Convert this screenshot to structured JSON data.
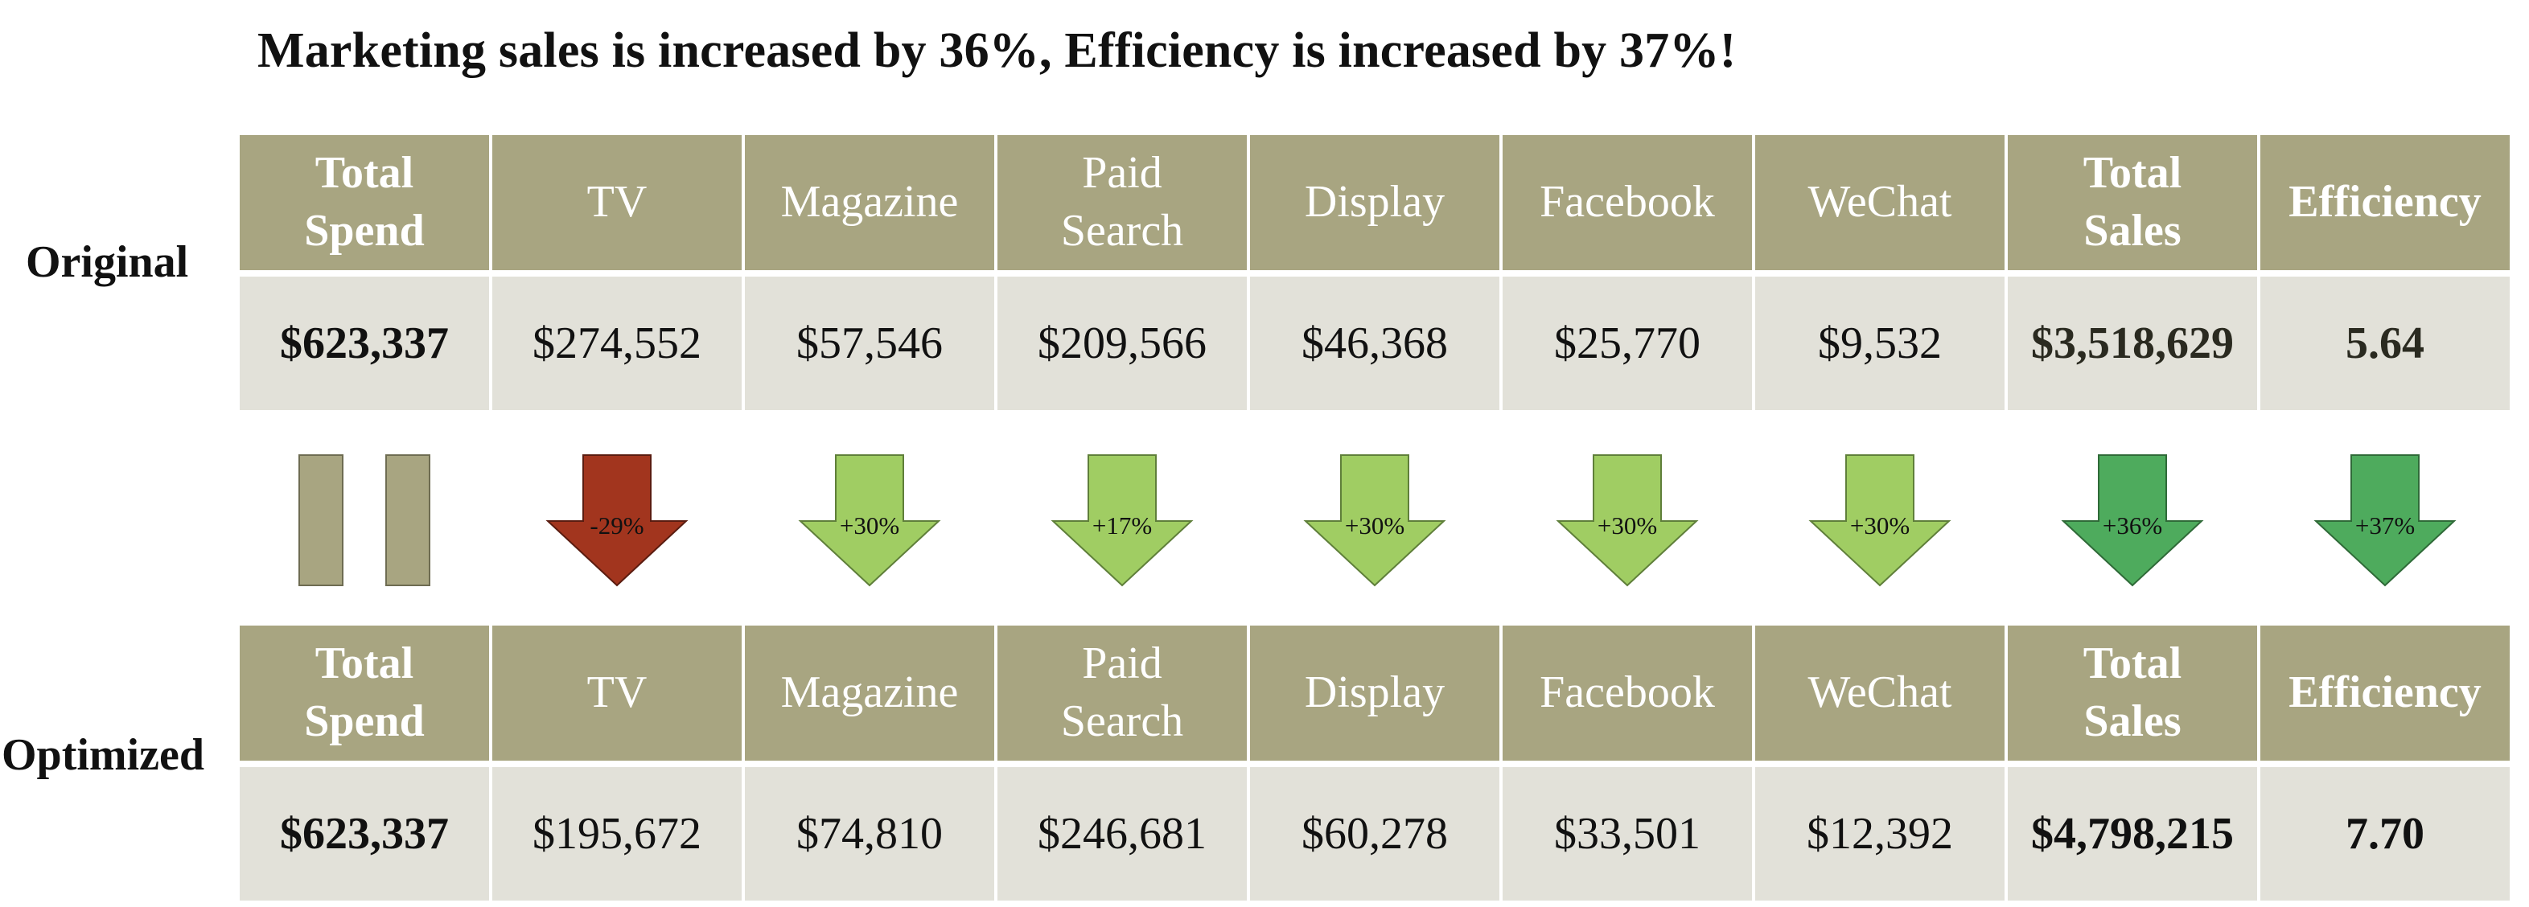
{
  "title": "Marketing sales is increased by 36%, Efficiency is increased by 37%!",
  "labels": {
    "original": "Original",
    "optimized": "Optimized"
  },
  "columns": [
    {
      "line1": "Total",
      "line2": "Spend",
      "bold": true
    },
    {
      "line1": "TV",
      "line2": "",
      "bold": false
    },
    {
      "line1": "Magazine",
      "line2": "",
      "bold": false
    },
    {
      "line1": "Paid",
      "line2": "Search",
      "bold": false
    },
    {
      "line1": "Display",
      "line2": "",
      "bold": false
    },
    {
      "line1": "Facebook",
      "line2": "",
      "bold": false
    },
    {
      "line1": "WeChat",
      "line2": "",
      "bold": false
    },
    {
      "line1": "Total",
      "line2": "Sales",
      "bold": true
    },
    {
      "line1": "Efficiency",
      "line2": "",
      "bold": true
    }
  ],
  "original": [
    "$623,337",
    "$274,552",
    "$57,546",
    "$209,566",
    "$46,368",
    "$25,770",
    "$9,532",
    "$3,518,629",
    "5.64"
  ],
  "optimized": [
    "$623,337",
    "$195,672",
    "$74,810",
    "$246,681",
    "$60,278",
    "$33,501",
    "$12,392",
    "$4,798,215",
    "7.70"
  ],
  "chart_data": {
    "type": "table",
    "title": "Marketing sales is increased by 36%, Efficiency is increased by 37%!",
    "columns": [
      "Total Spend",
      "TV",
      "Magazine",
      "Paid Search",
      "Display",
      "Facebook",
      "WeChat",
      "Total Sales",
      "Efficiency"
    ],
    "rows": [
      {
        "name": "Original",
        "values": [
          623337,
          274552,
          57546,
          209566,
          46368,
          25770,
          9532,
          3518629,
          5.64
        ]
      },
      {
        "name": "Optimized",
        "values": [
          623337,
          195672,
          74810,
          246681,
          60278,
          33501,
          12392,
          4798215,
          7.7
        ]
      }
    ],
    "changes": [
      {
        "column": "Total Spend",
        "label": "",
        "kind": "equal"
      },
      {
        "column": "TV",
        "label": "-29%",
        "kind": "decrease"
      },
      {
        "column": "Magazine",
        "label": "+30%",
        "kind": "increase"
      },
      {
        "column": "Paid Search",
        "label": "+17%",
        "kind": "increase"
      },
      {
        "column": "Display",
        "label": "+30%",
        "kind": "increase"
      },
      {
        "column": "Facebook",
        "label": "+30%",
        "kind": "increase"
      },
      {
        "column": "WeChat",
        "label": "+30%",
        "kind": "increase"
      },
      {
        "column": "Total Sales",
        "label": "+36%",
        "kind": "total"
      },
      {
        "column": "Efficiency",
        "label": "+37%",
        "kind": "total"
      }
    ],
    "colors": {
      "header": "#a8a581",
      "cell": "#e2e1d9",
      "equal": "#a8a581",
      "decrease": "#a2351e",
      "increase": "#a0cd63",
      "total": "#4eab5d"
    }
  }
}
